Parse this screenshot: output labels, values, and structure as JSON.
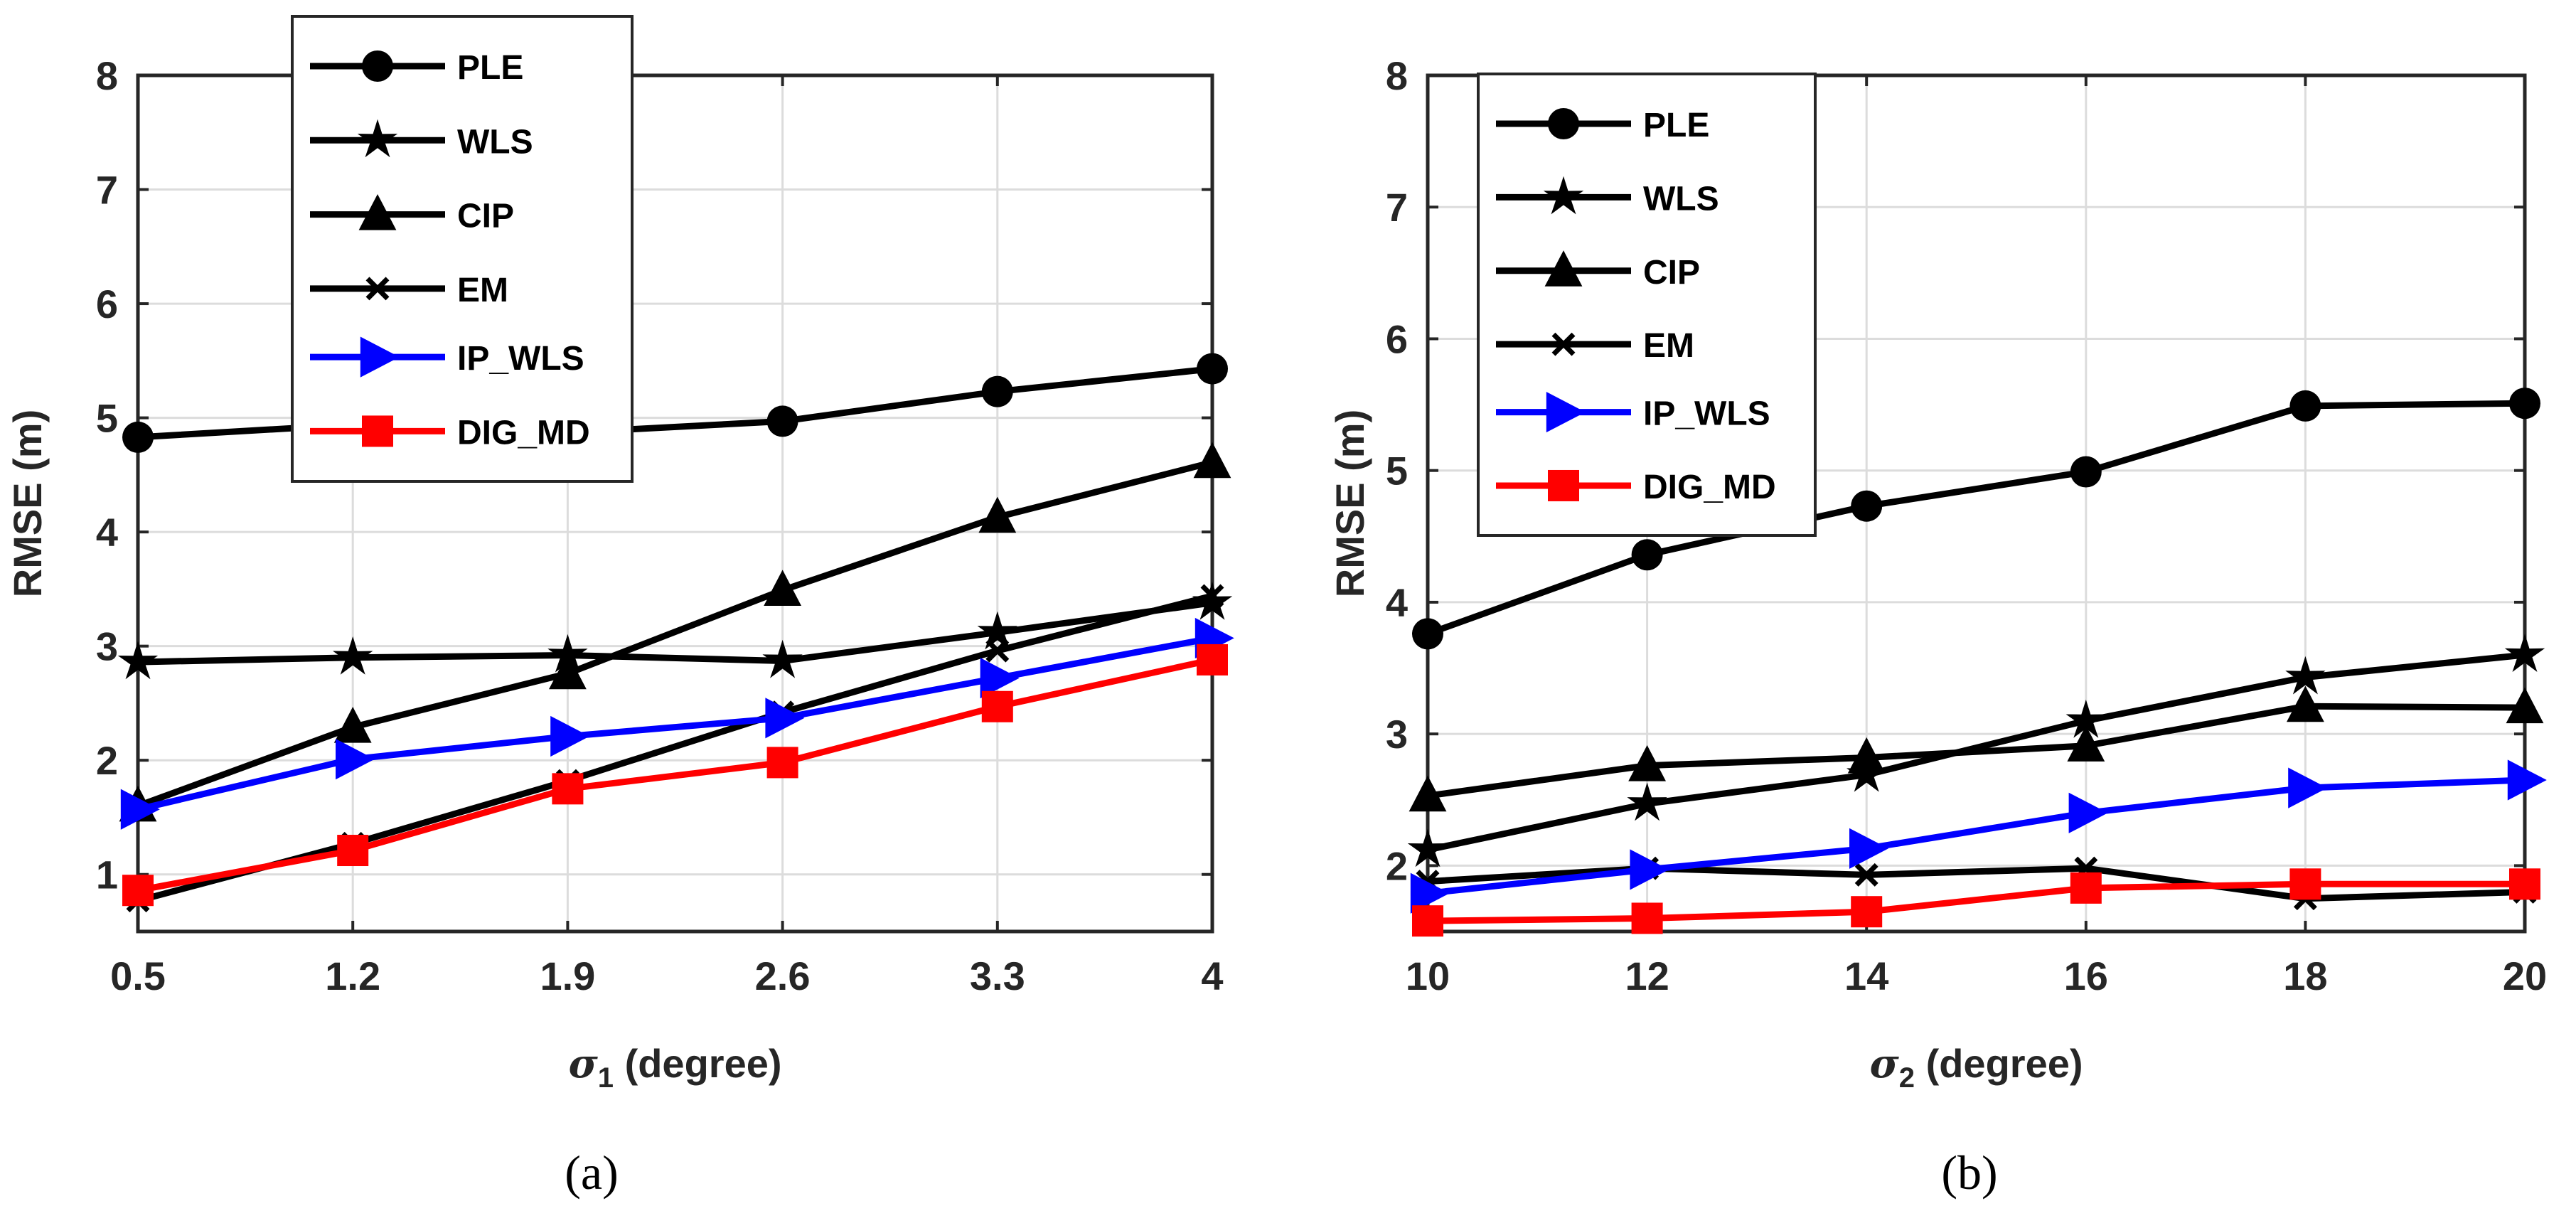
{
  "chart_data": [
    {
      "type": "line",
      "caption": "(a)",
      "xlabel_symbol": "σ",
      "xlabel_sub": "1",
      "xlabel_rest": " (degree)",
      "ylabel": "RMSE (m)",
      "x": [
        0.5,
        1.2,
        1.9,
        2.6,
        3.3,
        4
      ],
      "xticks": [
        "0.5",
        "1.2",
        "1.9",
        "2.6",
        "3.3",
        "4"
      ],
      "yticks": [
        "1",
        "2",
        "3",
        "4",
        "5",
        "6",
        "7",
        "8"
      ],
      "ylim": [
        0.5,
        8
      ],
      "grid": true,
      "legend_placement": "top-center",
      "series": [
        {
          "name": "PLE",
          "color": "#000000",
          "marker": "circle",
          "values": [
            4.83,
            4.94,
            4.87,
            4.97,
            5.23,
            5.43
          ]
        },
        {
          "name": "WLS",
          "color": "#000000",
          "marker": "star",
          "values": [
            2.86,
            2.9,
            2.92,
            2.87,
            3.12,
            3.38
          ]
        },
        {
          "name": "CIP",
          "color": "#000000",
          "marker": "triangle",
          "values": [
            1.6,
            2.29,
            2.76,
            3.49,
            4.13,
            4.61
          ]
        },
        {
          "name": "EM",
          "color": "#000000",
          "marker": "x",
          "values": [
            0.77,
            1.27,
            1.82,
            2.42,
            2.96,
            3.44
          ]
        },
        {
          "name": "IP_WLS",
          "color": "#0000ff",
          "marker": "triangle-right",
          "values": [
            1.57,
            2.01,
            2.21,
            2.37,
            2.72,
            3.07
          ]
        },
        {
          "name": "DIG_MD",
          "color": "#ff0000",
          "marker": "square",
          "values": [
            0.86,
            1.21,
            1.75,
            1.98,
            2.47,
            2.88
          ]
        }
      ]
    },
    {
      "type": "line",
      "caption": "(b)",
      "xlabel_symbol": "σ",
      "xlabel_sub": "2",
      "xlabel_rest": " (degree)",
      "ylabel": "RMSE (m)",
      "x": [
        10,
        12,
        14,
        16,
        18,
        20
      ],
      "xticks": [
        "10",
        "12",
        "14",
        "16",
        "18",
        "20"
      ],
      "yticks": [
        "2",
        "3",
        "4",
        "5",
        "6",
        "7",
        "8"
      ],
      "ylim": [
        1.5,
        8
      ],
      "grid": true,
      "legend_placement": "top-left",
      "series": [
        {
          "name": "PLE",
          "color": "#000000",
          "marker": "circle",
          "values": [
            3.76,
            4.36,
            4.73,
            4.99,
            5.49,
            5.51
          ]
        },
        {
          "name": "WLS",
          "color": "#000000",
          "marker": "star",
          "values": [
            2.12,
            2.47,
            2.69,
            3.1,
            3.43,
            3.6
          ]
        },
        {
          "name": "CIP",
          "color": "#000000",
          "marker": "triangle",
          "values": [
            2.53,
            2.76,
            2.82,
            2.91,
            3.21,
            3.2
          ]
        },
        {
          "name": "EM",
          "color": "#000000",
          "marker": "x",
          "values": [
            1.88,
            1.98,
            1.93,
            1.98,
            1.75,
            1.8
          ]
        },
        {
          "name": "IP_WLS",
          "color": "#0000ff",
          "marker": "triangle-right",
          "values": [
            1.79,
            1.97,
            2.13,
            2.4,
            2.59,
            2.65
          ]
        },
        {
          "name": "DIG_MD",
          "color": "#ff0000",
          "marker": "square",
          "values": [
            1.58,
            1.6,
            1.65,
            1.83,
            1.86,
            1.86
          ]
        }
      ]
    }
  ]
}
